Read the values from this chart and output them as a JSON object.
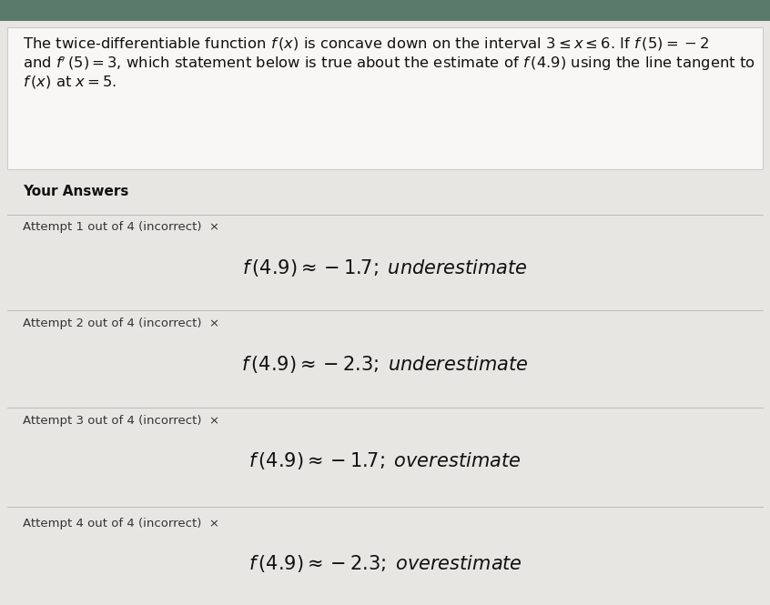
{
  "bg_color": "#c8c8c8",
  "page_color": "#e8e6e3",
  "title_line1": "The twice-differentiable function $f\\,(x)$ is concave down on the interval $3 \\leq x \\leq 6$. If $f\\,(5) = -2$",
  "title_line2": "and $f'\\,(5) = 3$, which statement below is true about the estimate of $f\\,(4.9)$ using the line tangent to",
  "title_line3": "$f\\,(x)$ at $x = 5$.",
  "your_answers_label": "Your Answers",
  "attempts": [
    {
      "label": "Attempt 1 out of 4 (incorrect)  ×",
      "answer": "$f\\,(4.9) \\approx -1.7;\\;underestimate$"
    },
    {
      "label": "Attempt 2 out of 4 (incorrect)  ×",
      "answer": "$f\\,(4.9) \\approx -2.3;\\;underestimate$"
    },
    {
      "label": "Attempt 3 out of 4 (incorrect)  ×",
      "answer": "$f\\,(4.9) \\approx -1.7;\\;overestimate$"
    },
    {
      "label": "Attempt 4 out of 4 (incorrect)  ×",
      "answer": "$f\\,(4.9) \\approx -2.3;\\;overestimate$"
    }
  ],
  "title_fontsize": 11.8,
  "label_fontsize": 9.5,
  "answer_fontsize": 15,
  "your_answers_fontsize": 11
}
